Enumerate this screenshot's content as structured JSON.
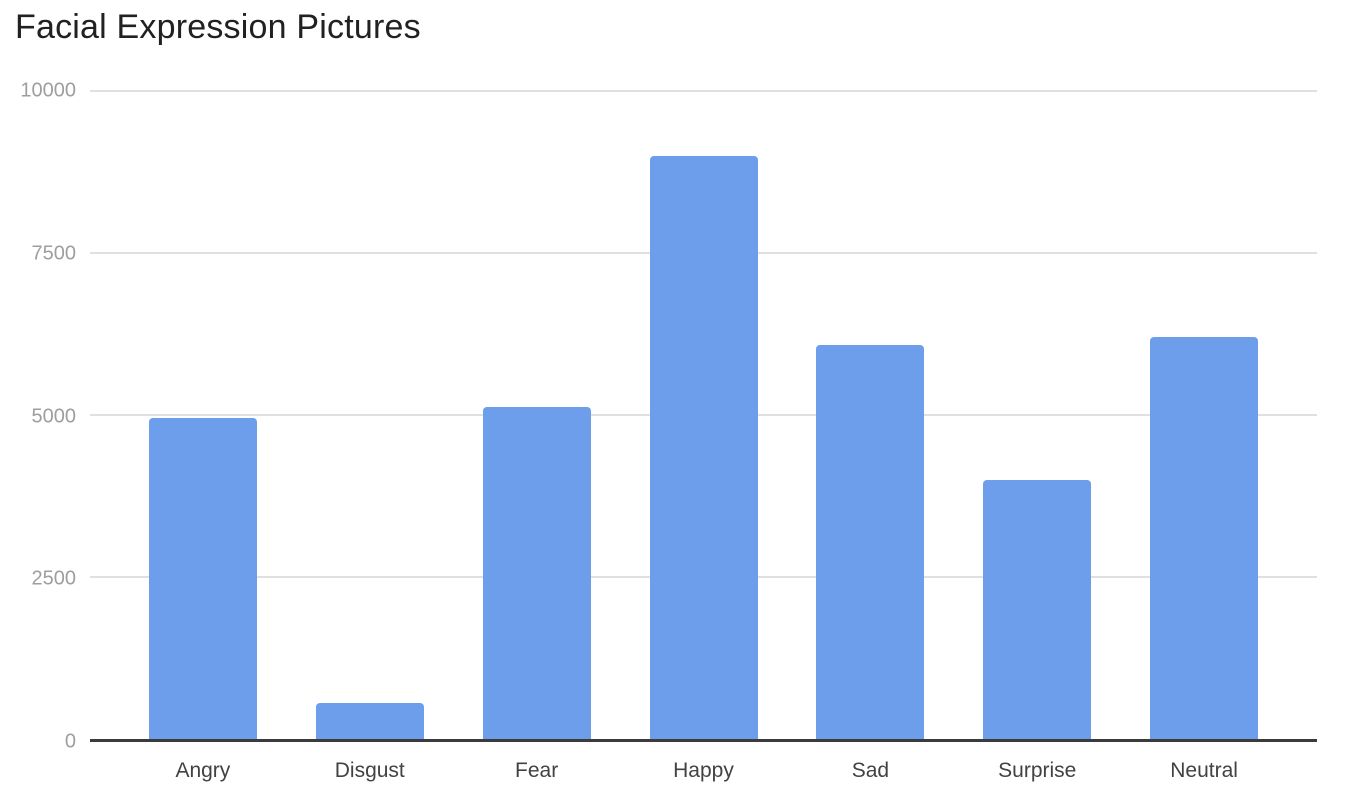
{
  "page": {
    "background": "#ffffff"
  },
  "chart_data": {
    "type": "bar",
    "title": "Facial Expression Pictures",
    "categories": [
      "Angry",
      "Disgust",
      "Fear",
      "Happy",
      "Sad",
      "Surprise",
      "Neutral"
    ],
    "values": [
      4950,
      550,
      5120,
      8990,
      6080,
      4000,
      6200
    ],
    "xlabel": "",
    "ylabel": "",
    "ylim": [
      0,
      10000
    ],
    "y_ticks": [
      0,
      2500,
      5000,
      7500,
      10000
    ],
    "grid": true,
    "legend": "none",
    "bar_color": "#6d9eeb"
  },
  "colors": {
    "title_text": "#212121",
    "tick_label_text": "#9e9e9e",
    "category_label_text": "#424242",
    "gridline": "#e0e0e0",
    "axis_line": "#3b3b3b",
    "bar_fill": "#6d9eeb"
  }
}
